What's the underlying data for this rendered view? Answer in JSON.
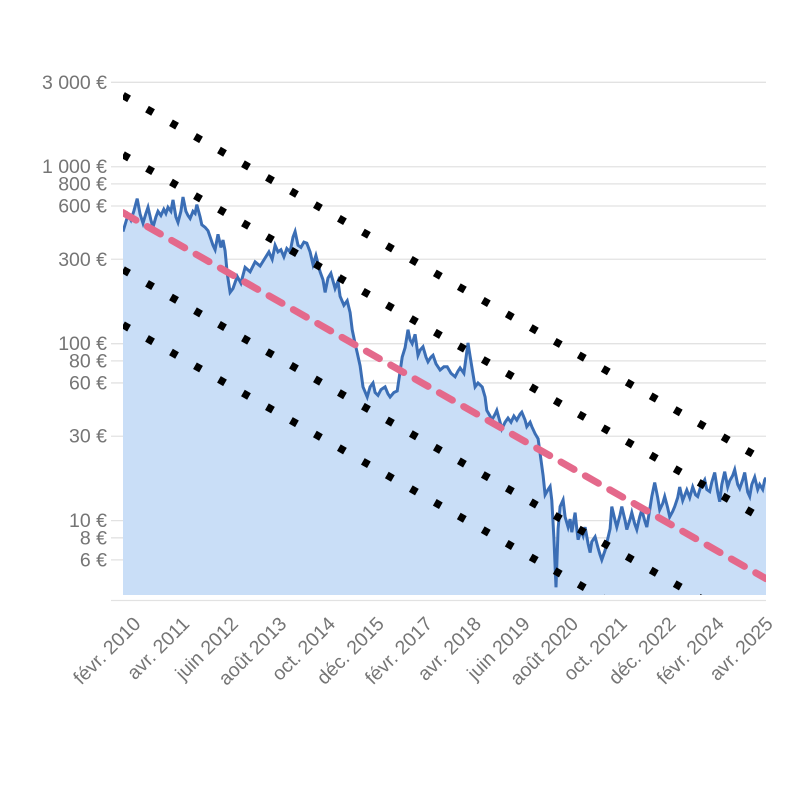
{
  "chart_data": {
    "type": "area",
    "title": "",
    "currency": "EUR",
    "scale_note": "logarithmic y axis",
    "colors": {
      "area_fill": "#c9def7",
      "price_line": "#3b6eb5",
      "trend_line": "#e4698b",
      "band_lines": "#000000",
      "grid": "#e2e2e2",
      "axis_text": "#757575"
    },
    "x_axis": {
      "min": 2009.82,
      "max": 2025.25,
      "ticks": [
        {
          "t": 2010.08,
          "label": "févr. 2010"
        },
        {
          "t": 2011.25,
          "label": "avr. 2011"
        },
        {
          "t": 2012.42,
          "label": "juin 2012"
        },
        {
          "t": 2013.58,
          "label": "août 2013"
        },
        {
          "t": 2014.75,
          "label": "oct. 2014"
        },
        {
          "t": 2015.92,
          "label": "déc. 2015"
        },
        {
          "t": 2017.08,
          "label": "févr. 2017"
        },
        {
          "t": 2018.25,
          "label": "avr. 2018"
        },
        {
          "t": 2019.42,
          "label": "juin 2019"
        },
        {
          "t": 2020.58,
          "label": "août 2020"
        },
        {
          "t": 2021.75,
          "label": "oct. 2021"
        },
        {
          "t": 2022.92,
          "label": "déc. 2022"
        },
        {
          "t": 2024.08,
          "label": "févr. 2024"
        },
        {
          "t": 2025.25,
          "label": "avr. 2025"
        }
      ]
    },
    "y_axis": {
      "scale": "log",
      "min": 3.8,
      "max": 3300,
      "ticks": [
        {
          "v": 3000,
          "label": "3 000 €"
        },
        {
          "v": 1000,
          "label": "1 000 €"
        },
        {
          "v": 800,
          "label": "800 €"
        },
        {
          "v": 600,
          "label": "600 €"
        },
        {
          "v": 300,
          "label": "300 €"
        },
        {
          "v": 100,
          "label": "100 €"
        },
        {
          "v": 80,
          "label": "80 €"
        },
        {
          "v": 60,
          "label": "60 €"
        },
        {
          "v": 30,
          "label": "30 €"
        },
        {
          "v": 10,
          "label": "10 €"
        },
        {
          "v": 8,
          "label": "8 €"
        },
        {
          "v": 6,
          "label": "6 €"
        }
      ]
    },
    "trend_line": {
      "style": "dashed",
      "t1": 2009.82,
      "v1": 550,
      "t2": 2025.25,
      "v2": 4.7
    },
    "band_lines": [
      {
        "style": "dotted",
        "v1": 2530,
        "v2": 21.6
      },
      {
        "style": "dotted",
        "v1": 1170,
        "v2": 10.0
      },
      {
        "style": "dotted",
        "v1": 262,
        "v2": 2.24
      },
      {
        "style": "dotted",
        "v1": 128,
        "v2": 1.09
      }
    ],
    "series": [
      {
        "name": "price-eur",
        "points": [
          [
            2009.82,
            430
          ],
          [
            2009.94,
            535
          ],
          [
            2010.01,
            500
          ],
          [
            2010.08,
            560
          ],
          [
            2010.16,
            660
          ],
          [
            2010.23,
            540
          ],
          [
            2010.3,
            480
          ],
          [
            2010.37,
            545
          ],
          [
            2010.42,
            590
          ],
          [
            2010.49,
            500
          ],
          [
            2010.54,
            455
          ],
          [
            2010.61,
            520
          ],
          [
            2010.66,
            560
          ],
          [
            2010.73,
            530
          ],
          [
            2010.8,
            575
          ],
          [
            2010.85,
            545
          ],
          [
            2010.9,
            590
          ],
          [
            2010.97,
            560
          ],
          [
            2011.02,
            650
          ],
          [
            2011.09,
            520
          ],
          [
            2011.14,
            485
          ],
          [
            2011.21,
            560
          ],
          [
            2011.26,
            675
          ],
          [
            2011.33,
            560
          ],
          [
            2011.38,
            530
          ],
          [
            2011.43,
            510
          ],
          [
            2011.5,
            560
          ],
          [
            2011.55,
            545
          ],
          [
            2011.59,
            610
          ],
          [
            2011.67,
            520
          ],
          [
            2011.71,
            470
          ],
          [
            2011.79,
            455
          ],
          [
            2011.86,
            435
          ],
          [
            2011.93,
            390
          ],
          [
            2011.98,
            360
          ],
          [
            2012.03,
            340
          ],
          [
            2012.1,
            415
          ],
          [
            2012.17,
            350
          ],
          [
            2012.22,
            385
          ],
          [
            2012.27,
            335
          ],
          [
            2012.32,
            250
          ],
          [
            2012.39,
            195
          ],
          [
            2012.46,
            205
          ],
          [
            2012.56,
            240
          ],
          [
            2012.65,
            220
          ],
          [
            2012.75,
            270
          ],
          [
            2012.87,
            255
          ],
          [
            2012.99,
            290
          ],
          [
            2013.11,
            275
          ],
          [
            2013.23,
            305
          ],
          [
            2013.32,
            330
          ],
          [
            2013.4,
            300
          ],
          [
            2013.47,
            360
          ],
          [
            2013.54,
            330
          ],
          [
            2013.61,
            340
          ],
          [
            2013.68,
            310
          ],
          [
            2013.75,
            345
          ],
          [
            2013.83,
            330
          ],
          [
            2013.9,
            400
          ],
          [
            2013.95,
            430
          ],
          [
            2014.02,
            360
          ],
          [
            2014.09,
            350
          ],
          [
            2014.16,
            375
          ],
          [
            2014.23,
            370
          ],
          [
            2014.31,
            330
          ],
          [
            2014.38,
            280
          ],
          [
            2014.45,
            315
          ],
          [
            2014.55,
            255
          ],
          [
            2014.62,
            230
          ],
          [
            2014.67,
            195
          ],
          [
            2014.74,
            235
          ],
          [
            2014.81,
            250
          ],
          [
            2014.91,
            205
          ],
          [
            2014.98,
            225
          ],
          [
            2015.03,
            185
          ],
          [
            2015.12,
            165
          ],
          [
            2015.2,
            175
          ],
          [
            2015.27,
            150
          ],
          [
            2015.32,
            120
          ],
          [
            2015.39,
            100
          ],
          [
            2015.44,
            89
          ],
          [
            2015.51,
            75
          ],
          [
            2015.58,
            57
          ],
          [
            2015.68,
            50
          ],
          [
            2015.75,
            57
          ],
          [
            2015.82,
            60
          ],
          [
            2015.87,
            53
          ],
          [
            2015.94,
            51
          ],
          [
            2016.01,
            55
          ],
          [
            2016.11,
            57
          ],
          [
            2016.18,
            52
          ],
          [
            2016.23,
            50
          ],
          [
            2016.32,
            53
          ],
          [
            2016.4,
            54
          ],
          [
            2016.52,
            84
          ],
          [
            2016.59,
            95
          ],
          [
            2016.66,
            120
          ],
          [
            2016.71,
            105
          ],
          [
            2016.76,
            100
          ],
          [
            2016.83,
            113
          ],
          [
            2016.9,
            86
          ],
          [
            2016.95,
            92
          ],
          [
            2017.02,
            96
          ],
          [
            2017.09,
            84
          ],
          [
            2017.14,
            79
          ],
          [
            2017.21,
            84
          ],
          [
            2017.26,
            86
          ],
          [
            2017.33,
            77
          ],
          [
            2017.43,
            71
          ],
          [
            2017.52,
            74
          ],
          [
            2017.6,
            74
          ],
          [
            2017.69,
            68
          ],
          [
            2017.79,
            65
          ],
          [
            2017.86,
            70
          ],
          [
            2017.91,
            73
          ],
          [
            2018.0,
            68
          ],
          [
            2018.1,
            101
          ],
          [
            2018.15,
            85
          ],
          [
            2018.19,
            74
          ],
          [
            2018.27,
            57
          ],
          [
            2018.34,
            60
          ],
          [
            2018.44,
            57
          ],
          [
            2018.51,
            50
          ],
          [
            2018.55,
            42
          ],
          [
            2018.63,
            39
          ],
          [
            2018.67,
            37
          ],
          [
            2018.75,
            40
          ],
          [
            2018.79,
            42
          ],
          [
            2018.87,
            36
          ],
          [
            2018.91,
            33
          ],
          [
            2018.99,
            36
          ],
          [
            2019.06,
            38
          ],
          [
            2019.13,
            36
          ],
          [
            2019.2,
            39
          ],
          [
            2019.27,
            37
          ],
          [
            2019.35,
            40
          ],
          [
            2019.39,
            41
          ],
          [
            2019.47,
            37
          ],
          [
            2019.51,
            34
          ],
          [
            2019.59,
            36
          ],
          [
            2019.63,
            34
          ],
          [
            2019.71,
            31
          ],
          [
            2019.78,
            29
          ],
          [
            2019.85,
            22
          ],
          [
            2019.9,
            18
          ],
          [
            2019.95,
            14
          ],
          [
            2020.02,
            15
          ],
          [
            2020.07,
            15.6
          ],
          [
            2020.11,
            13
          ],
          [
            2020.16,
            8
          ],
          [
            2020.21,
            4.2
          ],
          [
            2020.26,
            9
          ],
          [
            2020.31,
            12
          ],
          [
            2020.38,
            13.1
          ],
          [
            2020.43,
            10.5
          ],
          [
            2020.5,
            9.2
          ],
          [
            2020.55,
            10.2
          ],
          [
            2020.59,
            8.6
          ],
          [
            2020.67,
            11.1
          ],
          [
            2020.71,
            9
          ],
          [
            2020.74,
            7.8
          ],
          [
            2020.81,
            8.8
          ],
          [
            2020.86,
            8.2
          ],
          [
            2020.91,
            9.2
          ],
          [
            2020.98,
            7.4
          ],
          [
            2021.03,
            6.6
          ],
          [
            2021.07,
            7.6
          ],
          [
            2021.15,
            8.1
          ],
          [
            2021.22,
            7
          ],
          [
            2021.27,
            6.4
          ],
          [
            2021.31,
            6
          ],
          [
            2021.39,
            6.8
          ],
          [
            2021.43,
            7.5
          ],
          [
            2021.51,
            9
          ],
          [
            2021.55,
            12
          ],
          [
            2021.63,
            10
          ],
          [
            2021.67,
            9.2
          ],
          [
            2021.75,
            10.8
          ],
          [
            2021.79,
            12
          ],
          [
            2021.87,
            10
          ],
          [
            2021.91,
            8.9
          ],
          [
            2021.99,
            10.2
          ],
          [
            2022.03,
            11.1
          ],
          [
            2022.1,
            9.6
          ],
          [
            2022.15,
            8.9
          ],
          [
            2022.22,
            10.5
          ],
          [
            2022.27,
            11.5
          ],
          [
            2022.34,
            10
          ],
          [
            2022.39,
            9.2
          ],
          [
            2022.46,
            11.5
          ],
          [
            2022.51,
            13.7
          ],
          [
            2022.58,
            16.4
          ],
          [
            2022.65,
            13.5
          ],
          [
            2022.7,
            11.5
          ],
          [
            2022.77,
            12.5
          ],
          [
            2022.82,
            13.7
          ],
          [
            2022.89,
            11.8
          ],
          [
            2022.94,
            10.5
          ],
          [
            2023.01,
            11.3
          ],
          [
            2023.06,
            12
          ],
          [
            2023.13,
            13.5
          ],
          [
            2023.18,
            15.5
          ],
          [
            2023.25,
            13
          ],
          [
            2023.35,
            14.9
          ],
          [
            2023.42,
            13.5
          ],
          [
            2023.49,
            15.5
          ],
          [
            2023.56,
            14
          ],
          [
            2023.61,
            13.7
          ],
          [
            2023.68,
            15.5
          ],
          [
            2023.78,
            17
          ],
          [
            2023.83,
            15
          ],
          [
            2023.9,
            14.6
          ],
          [
            2023.95,
            16.5
          ],
          [
            2024.02,
            18.7
          ],
          [
            2024.09,
            14.5
          ],
          [
            2024.14,
            12.8
          ],
          [
            2024.19,
            16
          ],
          [
            2024.26,
            18.9
          ],
          [
            2024.33,
            15.5
          ],
          [
            2024.38,
            16.8
          ],
          [
            2024.45,
            18
          ],
          [
            2024.5,
            19.4
          ],
          [
            2024.57,
            16
          ],
          [
            2024.62,
            15.2
          ],
          [
            2024.69,
            17
          ],
          [
            2024.74,
            18.7
          ],
          [
            2024.81,
            14.5
          ],
          [
            2024.86,
            13.7
          ],
          [
            2024.91,
            16
          ],
          [
            2024.98,
            17.6
          ],
          [
            2025.05,
            15
          ],
          [
            2025.1,
            16
          ],
          [
            2025.17,
            15
          ],
          [
            2025.22,
            17
          ],
          [
            2025.25,
            17.5
          ]
        ]
      }
    ]
  }
}
